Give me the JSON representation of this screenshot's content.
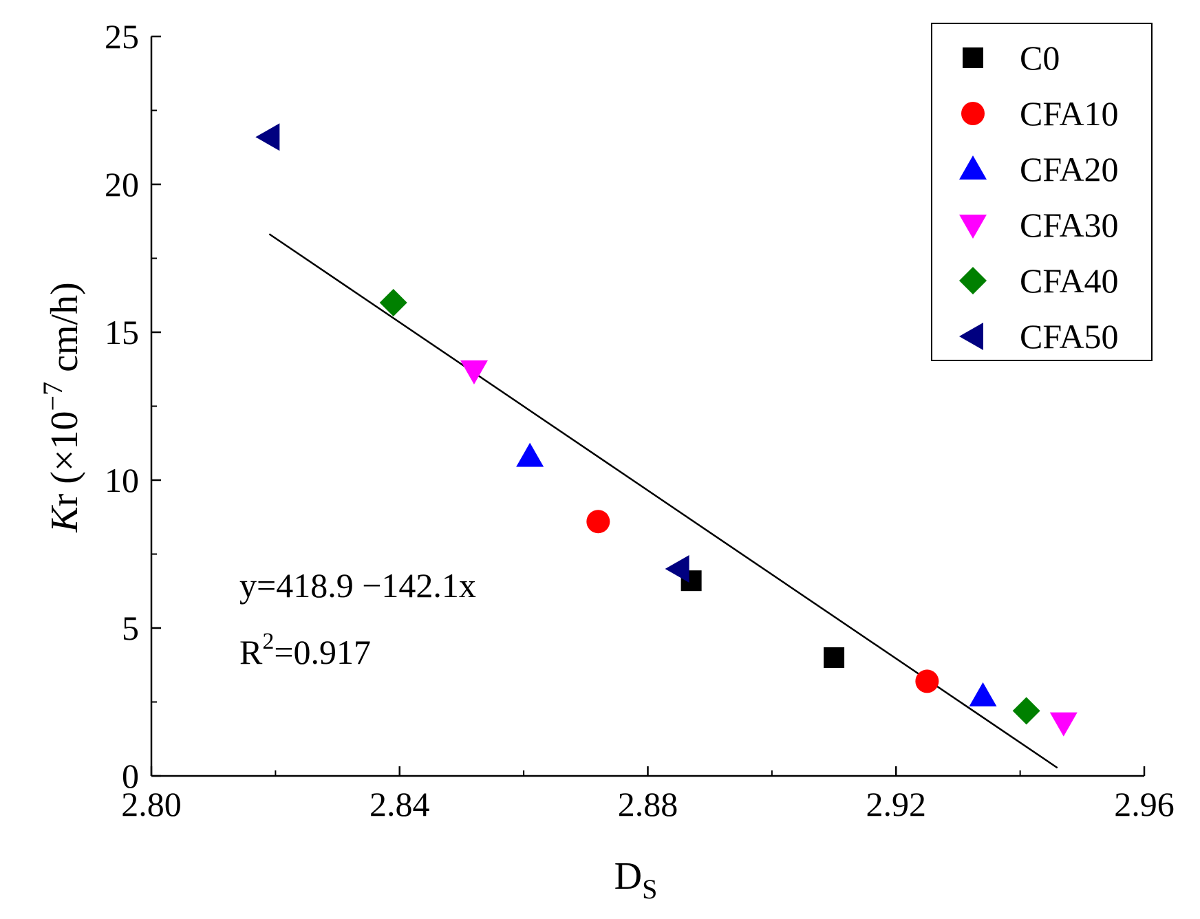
{
  "chart_data": {
    "type": "scatter",
    "title": "",
    "xlabel_main": "D",
    "xlabel_sub": "S",
    "ylabel_italic": "K",
    "ylabel_rest": "r (×10",
    "ylabel_exp": "−7",
    "ylabel_unit": " cm/h)",
    "xlim": [
      2.8,
      2.96
    ],
    "ylim": [
      0,
      25
    ],
    "xticks": [
      2.8,
      2.84,
      2.88,
      2.92,
      2.96
    ],
    "xtick_labels": [
      "2.80",
      "2.84",
      "2.88",
      "2.92",
      "2.96"
    ],
    "yticks": [
      0,
      5,
      10,
      15,
      20,
      25
    ],
    "ytick_labels": [
      "0",
      "5",
      "10",
      "15",
      "20",
      "25"
    ],
    "grid": false,
    "legend_position": "top-right",
    "series": [
      {
        "name": "C0",
        "marker": "square",
        "color": "#000000",
        "points": [
          [
            2.887,
            6.6
          ],
          [
            2.91,
            4.0
          ]
        ]
      },
      {
        "name": "CFA10",
        "marker": "circle",
        "color": "#ff0000",
        "points": [
          [
            2.872,
            8.6
          ],
          [
            2.925,
            3.2
          ]
        ]
      },
      {
        "name": "CFA20",
        "marker": "triangle-up",
        "color": "#0000ff",
        "points": [
          [
            2.861,
            10.8
          ],
          [
            2.934,
            2.7
          ]
        ]
      },
      {
        "name": "CFA30",
        "marker": "triangle-down",
        "color": "#ff00ff",
        "points": [
          [
            2.852,
            13.7
          ],
          [
            2.947,
            1.8
          ]
        ]
      },
      {
        "name": "CFA40",
        "marker": "diamond",
        "color": "#008000",
        "points": [
          [
            2.839,
            16.0
          ],
          [
            2.941,
            2.2
          ]
        ]
      },
      {
        "name": "CFA50",
        "marker": "triangle-left",
        "color": "#000080",
        "points": [
          [
            2.819,
            21.6
          ],
          [
            2.885,
            7.0
          ]
        ]
      }
    ],
    "fit_line": {
      "intercept": 418.9,
      "slope": -142.1,
      "x_range": [
        2.819,
        2.946
      ],
      "color": "#000000"
    },
    "annotations": {
      "equation": "y=418.9 −142.1x",
      "r2_prefix": "R",
      "r2_sup": "2",
      "r2_value": "=0.917"
    }
  }
}
